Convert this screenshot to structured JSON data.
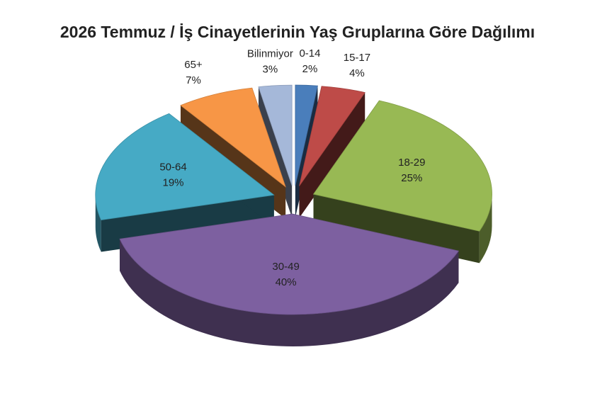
{
  "chart_data": {
    "type": "pie",
    "title": "2026 Temmuz / İş Cinayetlerinin Yaş Gruplarına Göre Dağılımı",
    "categories": [
      "0-14",
      "15-17",
      "18-29",
      "30-49",
      "50-64",
      "65+",
      "Bilinmiyor"
    ],
    "values": [
      2,
      4,
      25,
      40,
      19,
      7,
      3
    ],
    "value_labels": [
      "2%",
      "4%",
      "25%",
      "40%",
      "19%",
      "7%",
      "3%"
    ],
    "colors": [
      "#4a7ebb",
      "#be4b48",
      "#98b954",
      "#7d60a0",
      "#46aac5",
      "#f79646",
      "#a5b8d9"
    ]
  }
}
